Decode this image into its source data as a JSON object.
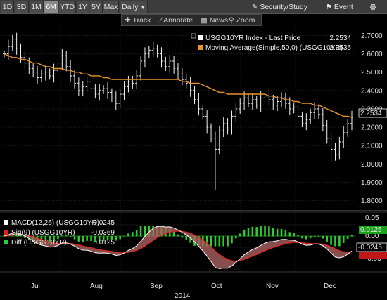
{
  "toolbar": {
    "periods": [
      "1D",
      "3D",
      "1M",
      "6M",
      "YTD",
      "1Y",
      "5Y",
      "Max"
    ],
    "active_period": "6M",
    "frequency": "Daily",
    "security_study": "Security/Study",
    "event": "Event"
  },
  "chart_tools": {
    "track": "Track",
    "annotate": "Annotate",
    "news": "News",
    "zoom": "Zoom"
  },
  "colors": {
    "price": "#ffffff",
    "moving_average": "#e8932b",
    "macd": "#ffffff",
    "signal": "#e02020",
    "diff": "#2ecc2e",
    "toolbar_bg": "#3c3c3c",
    "active_button": "#8a8a8a"
  },
  "chart_data": [
    {
      "type": "line",
      "style": "ohlc-bars",
      "series": [
        {
          "name": "USGG10YR Index - Last Price",
          "last_value": "2.2534",
          "values": [
            2.6,
            2.64,
            2.68,
            2.63,
            2.58,
            2.55,
            2.52,
            2.5,
            2.47,
            2.49,
            2.5,
            2.48,
            2.51,
            2.55,
            2.59,
            2.53,
            2.48,
            2.44,
            2.4,
            2.42,
            2.45,
            2.41,
            2.38,
            2.4,
            2.41,
            2.39,
            2.36,
            2.33,
            2.38,
            2.42,
            2.45,
            2.44,
            2.48,
            2.56,
            2.6,
            2.62,
            2.63,
            2.6,
            2.56,
            2.53,
            2.56,
            2.52,
            2.49,
            2.46,
            2.44,
            2.4,
            2.35,
            2.3,
            2.26,
            2.2,
            2.14,
            2.08,
            2.18,
            2.22,
            2.19,
            2.26,
            2.3,
            2.33,
            2.36,
            2.33,
            2.35,
            2.32,
            2.36,
            2.37,
            2.35,
            2.32,
            2.34,
            2.36,
            2.33,
            2.3,
            2.31,
            2.26,
            2.22,
            2.24,
            2.28,
            2.3,
            2.27,
            2.21,
            2.14,
            2.08,
            2.05,
            2.12,
            2.17,
            2.22,
            2.2534
          ]
        },
        {
          "name": "Moving Average(Simple,50,0) (USGG10YR)",
          "last_value": "2.2535",
          "values": [
            2.6,
            2.59,
            2.58,
            2.58,
            2.57,
            2.57,
            2.56,
            2.55,
            2.55,
            2.54,
            2.53,
            2.53,
            2.52,
            2.52,
            2.52,
            2.51,
            2.51,
            2.5,
            2.5,
            2.49,
            2.49,
            2.48,
            2.48,
            2.48,
            2.47,
            2.47,
            2.46,
            2.46,
            2.46,
            2.46,
            2.46,
            2.46,
            2.46,
            2.46,
            2.46,
            2.46,
            2.46,
            2.46,
            2.46,
            2.46,
            2.46,
            2.46,
            2.46,
            2.45,
            2.45,
            2.44,
            2.44,
            2.44,
            2.43,
            2.42,
            2.41,
            2.4,
            2.39,
            2.39,
            2.38,
            2.38,
            2.38,
            2.38,
            2.38,
            2.38,
            2.38,
            2.38,
            2.38,
            2.38,
            2.37,
            2.37,
            2.36,
            2.36,
            2.35,
            2.35,
            2.34,
            2.34,
            2.33,
            2.33,
            2.33,
            2.32,
            2.32,
            2.31,
            2.3,
            2.29,
            2.28,
            2.27,
            2.26,
            2.26,
            2.2535
          ]
        }
      ],
      "y_ticks": [
        "2.7000",
        "2.6000",
        "2.5000",
        "2.4000",
        "2.3000",
        "2.2000",
        "2.1000",
        "2.0000",
        "1.9000",
        "1.8000"
      ],
      "ylim": [
        1.76,
        2.74
      ],
      "x_labels": [
        "Jul",
        "Aug",
        "Sep",
        "Oct",
        "Nov",
        "Dec"
      ],
      "year_label": "2014",
      "grid": true,
      "legend": "top-right"
    },
    {
      "type": "line",
      "title": "",
      "series": [
        {
          "name": "MACD(12,26) (USGG10YR)",
          "last_value": "-0.0245"
        },
        {
          "name": "Sig(9) (USGG10YR)",
          "last_value": "-0.0369"
        },
        {
          "name": "Diff (USGG10YR)",
          "last_value": "0.0125"
        }
      ],
      "y_ticks": [
        "0.05",
        "0.00",
        "-0.05"
      ],
      "legend": "top-left"
    }
  ]
}
